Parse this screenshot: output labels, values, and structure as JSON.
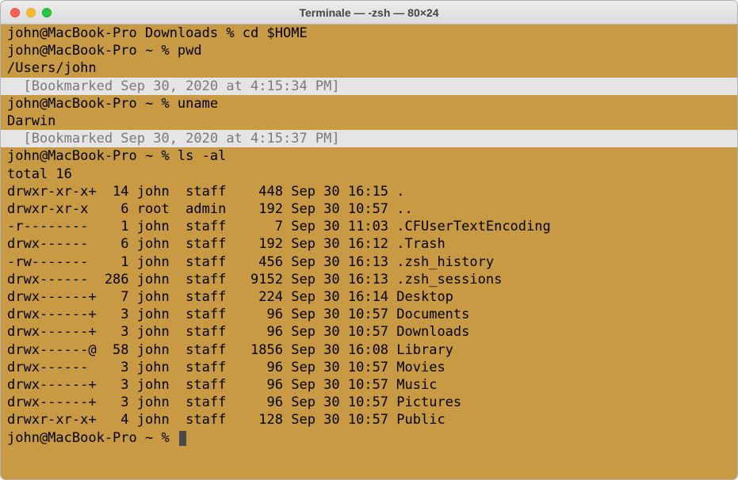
{
  "window": {
    "title": "Terminale — -zsh — 80×24"
  },
  "colors": {
    "terminal_bg": "#c79a43",
    "terminal_fg": "#000000",
    "bookmark_bg": "#e5e5e5",
    "bookmark_fg": "#7a7a7a",
    "traffic_close": "#ff5f57",
    "traffic_min": "#febc2e",
    "traffic_zoom": "#28c840"
  },
  "content": {
    "line0": "john@MacBook-Pro Downloads % cd $HOME",
    "line1": "john@MacBook-Pro ~ % pwd",
    "line2": "/Users/john",
    "bm0": "  [Bookmarked Sep 30, 2020 at 4:15:34 PM]",
    "line3": "john@MacBook-Pro ~ % uname",
    "line4": "Darwin",
    "bm1": "  [Bookmarked Sep 30, 2020 at 4:15:37 PM]",
    "line5": "john@MacBook-Pro ~ % ls -al",
    "line6": "total 16",
    "line7": "drwxr-xr-x+  14 john  staff    448 Sep 30 16:15 .",
    "line8": "drwxr-xr-x    6 root  admin    192 Sep 30 10:57 ..",
    "line9": "-r--------    1 john  staff      7 Sep 30 11:03 .CFUserTextEncoding",
    "line10": "drwx------    6 john  staff    192 Sep 30 16:12 .Trash",
    "line11": "-rw-------    1 john  staff    456 Sep 30 16:13 .zsh_history",
    "line12": "drwx------  286 john  staff   9152 Sep 30 16:13 .zsh_sessions",
    "line13": "drwx------+   7 john  staff    224 Sep 30 16:14 Desktop",
    "line14": "drwx------+   3 john  staff     96 Sep 30 10:57 Documents",
    "line15": "drwx------+   3 john  staff     96 Sep 30 10:57 Downloads",
    "line16": "drwx------@  58 john  staff   1856 Sep 30 16:08 Library",
    "line17": "drwx------    3 john  staff     96 Sep 30 10:57 Movies",
    "line18": "drwx------+   3 john  staff     96 Sep 30 10:57 Music",
    "line19": "drwx------+   3 john  staff     96 Sep 30 10:57 Pictures",
    "line20": "drwxr-xr-x+   4 john  staff    128 Sep 30 10:57 Public",
    "prompt": "john@MacBook-Pro ~ % "
  }
}
